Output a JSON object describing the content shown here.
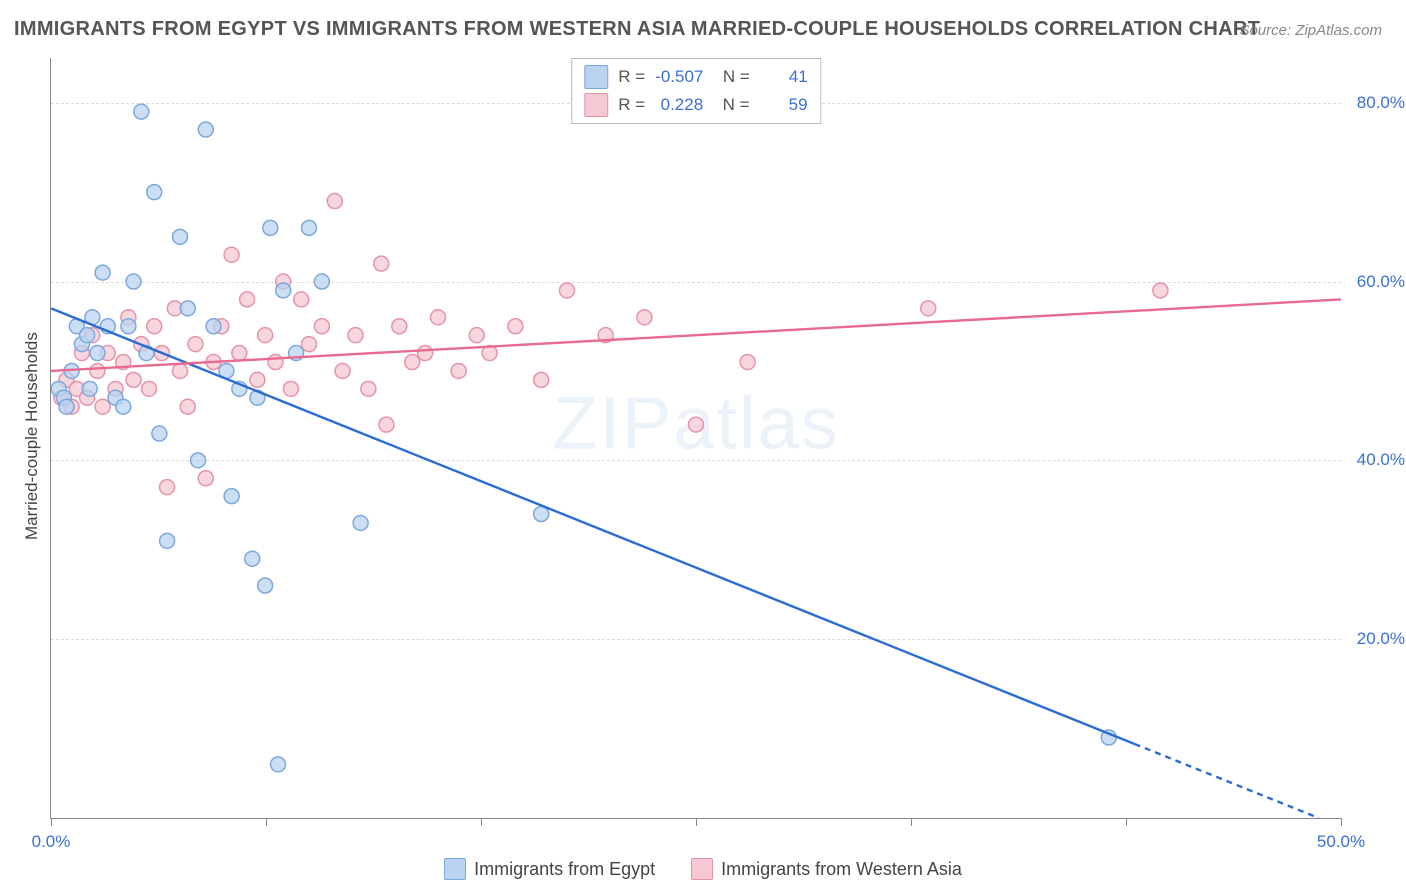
{
  "title": "IMMIGRANTS FROM EGYPT VS IMMIGRANTS FROM WESTERN ASIA MARRIED-COUPLE HOUSEHOLDS CORRELATION CHART",
  "source": "Source: ZipAtlas.com",
  "watermark": "ZIPatlas",
  "y_axis_label": "Married-couple Households",
  "chart": {
    "type": "scatter",
    "background_color": "#ffffff",
    "grid_color": "#dcdcdc",
    "axis_color": "#888888",
    "xlim": [
      0.0,
      50.0
    ],
    "ylim": [
      0.0,
      85.0
    ],
    "x_ticks": [
      0.0,
      50.0
    ],
    "x_tick_labels": [
      "0.0%",
      "50.0%"
    ],
    "x_minor_ticks": [
      8.33,
      16.67,
      25.0,
      33.33,
      41.67
    ],
    "y_ticks": [
      20.0,
      40.0,
      60.0,
      80.0
    ],
    "y_tick_labels": [
      "20.0%",
      "40.0%",
      "60.0%",
      "80.0%"
    ],
    "marker_radius": 7.5,
    "marker_stroke_width": 1.5,
    "line_width": 2.4
  },
  "series": [
    {
      "id": "egypt",
      "label": "Immigrants from Egypt",
      "fill": "#b9d3f0",
      "stroke": "#7ca8dd",
      "line_color": "#2b6cd4",
      "R": "-0.507",
      "N": "41",
      "regression": {
        "x1": 0.0,
        "y1": 57.0,
        "x2": 50.0,
        "y2": -1.0,
        "dash_after_x": 42.0
      },
      "points": [
        [
          0.3,
          48
        ],
        [
          0.5,
          47
        ],
        [
          0.6,
          46
        ],
        [
          0.8,
          50
        ],
        [
          1.0,
          55
        ],
        [
          1.2,
          53
        ],
        [
          1.4,
          54
        ],
        [
          1.5,
          48
        ],
        [
          1.6,
          56
        ],
        [
          1.8,
          52
        ],
        [
          2.0,
          61
        ],
        [
          2.2,
          55
        ],
        [
          2.5,
          47
        ],
        [
          2.8,
          46
        ],
        [
          3.0,
          55
        ],
        [
          3.2,
          60
        ],
        [
          3.5,
          79
        ],
        [
          3.7,
          52
        ],
        [
          4.0,
          70
        ],
        [
          4.2,
          43
        ],
        [
          4.5,
          31
        ],
        [
          5.0,
          65
        ],
        [
          5.3,
          57
        ],
        [
          5.7,
          40
        ],
        [
          6.0,
          77
        ],
        [
          6.3,
          55
        ],
        [
          6.8,
          50
        ],
        [
          7.0,
          36
        ],
        [
          7.3,
          48
        ],
        [
          7.8,
          29
        ],
        [
          8.0,
          47
        ],
        [
          8.3,
          26
        ],
        [
          8.5,
          66
        ],
        [
          8.8,
          6
        ],
        [
          9.0,
          59
        ],
        [
          9.5,
          52
        ],
        [
          10.0,
          66
        ],
        [
          10.5,
          60
        ],
        [
          12.0,
          33
        ],
        [
          19.0,
          34
        ],
        [
          41.0,
          9
        ]
      ]
    },
    {
      "id": "wasia",
      "label": "Immigrants from Western Asia",
      "fill": "#f6c8d3",
      "stroke": "#e593ab",
      "line_color": "#e86b8f",
      "R": "0.228",
      "N": "59",
      "regression": {
        "x1": 0.0,
        "y1": 50.0,
        "x2": 50.0,
        "y2": 58.0
      },
      "points": [
        [
          0.4,
          47
        ],
        [
          0.6,
          49
        ],
        [
          0.8,
          46
        ],
        [
          1.0,
          48
        ],
        [
          1.2,
          52
        ],
        [
          1.4,
          47
        ],
        [
          1.6,
          54
        ],
        [
          1.8,
          50
        ],
        [
          2.0,
          46
        ],
        [
          2.2,
          52
        ],
        [
          2.5,
          48
        ],
        [
          2.8,
          51
        ],
        [
          3.0,
          56
        ],
        [
          3.2,
          49
        ],
        [
          3.5,
          53
        ],
        [
          3.8,
          48
        ],
        [
          4.0,
          55
        ],
        [
          4.3,
          52
        ],
        [
          4.5,
          37
        ],
        [
          4.8,
          57
        ],
        [
          5.0,
          50
        ],
        [
          5.3,
          46
        ],
        [
          5.6,
          53
        ],
        [
          6.0,
          38
        ],
        [
          6.3,
          51
        ],
        [
          6.6,
          55
        ],
        [
          7.0,
          63
        ],
        [
          7.3,
          52
        ],
        [
          7.6,
          58
        ],
        [
          8.0,
          49
        ],
        [
          8.3,
          54
        ],
        [
          8.7,
          51
        ],
        [
          9.0,
          60
        ],
        [
          9.3,
          48
        ],
        [
          9.7,
          58
        ],
        [
          10.0,
          53
        ],
        [
          10.5,
          55
        ],
        [
          11.0,
          69
        ],
        [
          11.3,
          50
        ],
        [
          11.8,
          54
        ],
        [
          12.3,
          48
        ],
        [
          12.8,
          62
        ],
        [
          13.0,
          44
        ],
        [
          13.5,
          55
        ],
        [
          14.0,
          51
        ],
        [
          14.5,
          52
        ],
        [
          15.0,
          56
        ],
        [
          15.8,
          50
        ],
        [
          16.5,
          54
        ],
        [
          17.0,
          52
        ],
        [
          18.0,
          55
        ],
        [
          19.0,
          49
        ],
        [
          20.0,
          59
        ],
        [
          21.5,
          54
        ],
        [
          23.0,
          56
        ],
        [
          25.0,
          44
        ],
        [
          27.0,
          51
        ],
        [
          34.0,
          57
        ],
        [
          43.0,
          59
        ]
      ]
    }
  ]
}
